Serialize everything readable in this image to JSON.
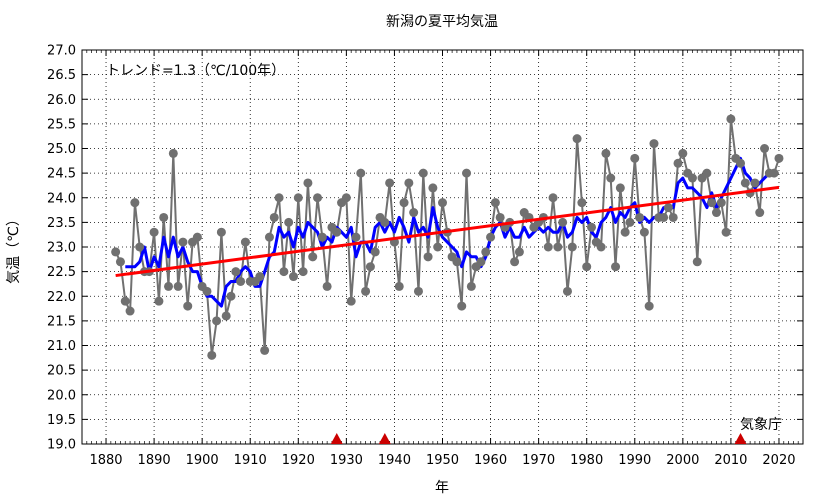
{
  "chart_data": {
    "type": "line",
    "title": "新潟の夏平均気温",
    "xlabel": "年",
    "ylabel": "気温（℃）",
    "annotation": "トレンド=1.3（℃/100年）",
    "source": "気象庁",
    "xlim": [
      1875,
      2025
    ],
    "ylim": [
      19.0,
      27.0
    ],
    "grid": true,
    "x_ticks": [
      1880,
      1890,
      1900,
      1910,
      1920,
      1930,
      1940,
      1950,
      1960,
      1970,
      1980,
      1990,
      2000,
      2010,
      2020
    ],
    "y_ticks": [
      19.0,
      19.5,
      20.0,
      20.5,
      21.0,
      21.5,
      22.0,
      22.5,
      23.0,
      23.5,
      24.0,
      24.5,
      25.0,
      25.5,
      26.0,
      26.5,
      27.0
    ],
    "marker_years": [
      1928,
      1938,
      2012
    ],
    "series": [
      {
        "role": "annual",
        "color": "#707070",
        "points": [
          [
            1882,
            22.9
          ],
          [
            1883,
            22.7
          ],
          [
            1884,
            21.9
          ],
          [
            1885,
            21.7
          ],
          [
            1886,
            23.9
          ],
          [
            1887,
            23.0
          ],
          [
            1888,
            22.5
          ],
          [
            1889,
            22.5
          ],
          [
            1890,
            23.3
          ],
          [
            1891,
            21.9
          ],
          [
            1892,
            23.6
          ],
          [
            1893,
            22.2
          ],
          [
            1894,
            24.9
          ],
          [
            1895,
            22.2
          ],
          [
            1896,
            23.1
          ],
          [
            1897,
            21.8
          ],
          [
            1898,
            23.1
          ],
          [
            1899,
            23.2
          ],
          [
            1900,
            22.2
          ],
          [
            1901,
            22.1
          ],
          [
            1902,
            20.8
          ],
          [
            1903,
            21.5
          ],
          [
            1904,
            23.3
          ],
          [
            1905,
            21.6
          ],
          [
            1906,
            22.0
          ],
          [
            1907,
            22.5
          ],
          [
            1908,
            22.3
          ],
          [
            1909,
            23.1
          ],
          [
            1910,
            22.3
          ],
          [
            1911,
            22.3
          ],
          [
            1912,
            22.4
          ],
          [
            1913,
            20.9
          ],
          [
            1914,
            23.2
          ],
          [
            1915,
            23.6
          ],
          [
            1916,
            24.0
          ],
          [
            1917,
            22.5
          ],
          [
            1918,
            23.5
          ],
          [
            1919,
            22.4
          ],
          [
            1920,
            24.0
          ],
          [
            1921,
            22.5
          ],
          [
            1922,
            24.3
          ],
          [
            1923,
            22.8
          ],
          [
            1924,
            24.0
          ],
          [
            1925,
            23.2
          ],
          [
            1926,
            22.2
          ],
          [
            1927,
            23.4
          ],
          [
            1928,
            23.3
          ],
          [
            1929,
            23.9
          ],
          [
            1930,
            24.0
          ],
          [
            1931,
            21.9
          ],
          [
            1932,
            23.2
          ],
          [
            1933,
            24.5
          ],
          [
            1934,
            22.1
          ],
          [
            1935,
            22.6
          ],
          [
            1936,
            22.9
          ],
          [
            1937,
            23.6
          ],
          [
            1938,
            23.5
          ],
          [
            1939,
            24.3
          ],
          [
            1940,
            23.1
          ],
          [
            1941,
            22.2
          ],
          [
            1942,
            23.9
          ],
          [
            1943,
            24.3
          ],
          [
            1944,
            23.7
          ],
          [
            1945,
            22.1
          ],
          [
            1946,
            24.5
          ],
          [
            1947,
            22.8
          ],
          [
            1948,
            24.2
          ],
          [
            1949,
            23.0
          ],
          [
            1950,
            23.9
          ],
          [
            1951,
            23.3
          ],
          [
            1952,
            22.8
          ],
          [
            1953,
            22.7
          ],
          [
            1954,
            21.8
          ],
          [
            1955,
            24.5
          ],
          [
            1956,
            22.2
          ],
          [
            1957,
            22.6
          ],
          [
            1958,
            22.7
          ],
          [
            1959,
            22.9
          ],
          [
            1960,
            23.2
          ],
          [
            1961,
            23.9
          ],
          [
            1962,
            23.6
          ],
          [
            1963,
            23.4
          ],
          [
            1964,
            23.5
          ],
          [
            1965,
            22.7
          ],
          [
            1966,
            22.9
          ],
          [
            1967,
            23.7
          ],
          [
            1968,
            23.6
          ],
          [
            1969,
            23.4
          ],
          [
            1970,
            23.5
          ],
          [
            1971,
            23.6
          ],
          [
            1972,
            23.0
          ],
          [
            1973,
            24.0
          ],
          [
            1974,
            23.0
          ],
          [
            1975,
            23.5
          ],
          [
            1976,
            22.1
          ],
          [
            1977,
            23.0
          ],
          [
            1978,
            25.2
          ],
          [
            1979,
            23.9
          ],
          [
            1980,
            22.6
          ],
          [
            1981,
            23.4
          ],
          [
            1982,
            23.1
          ],
          [
            1983,
            23.0
          ],
          [
            1984,
            24.9
          ],
          [
            1985,
            24.4
          ],
          [
            1986,
            22.6
          ],
          [
            1987,
            24.2
          ],
          [
            1988,
            23.3
          ],
          [
            1989,
            23.5
          ],
          [
            1990,
            24.8
          ],
          [
            1991,
            23.6
          ],
          [
            1992,
            23.3
          ],
          [
            1993,
            21.8
          ],
          [
            1994,
            25.1
          ],
          [
            1995,
            23.6
          ],
          [
            1996,
            23.6
          ],
          [
            1997,
            23.8
          ],
          [
            1998,
            23.6
          ],
          [
            1999,
            24.7
          ],
          [
            2000,
            24.9
          ],
          [
            2001,
            24.5
          ],
          [
            2002,
            24.4
          ],
          [
            2003,
            22.7
          ],
          [
            2004,
            24.4
          ],
          [
            2005,
            24.5
          ],
          [
            2006,
            23.9
          ],
          [
            2007,
            23.7
          ],
          [
            2008,
            23.9
          ],
          [
            2009,
            23.3
          ],
          [
            2010,
            25.6
          ],
          [
            2011,
            24.8
          ],
          [
            2012,
            24.7
          ],
          [
            2013,
            24.3
          ],
          [
            2014,
            24.1
          ],
          [
            2015,
            24.3
          ],
          [
            2016,
            23.7
          ],
          [
            2017,
            25.0
          ],
          [
            2018,
            24.5
          ],
          [
            2019,
            24.5
          ],
          [
            2020,
            24.8
          ]
        ]
      },
      {
        "role": "moving_average",
        "color": "#0000ff",
        "points": [
          [
            1884,
            22.6
          ],
          [
            1885,
            22.6
          ],
          [
            1886,
            22.6
          ],
          [
            1887,
            22.7
          ],
          [
            1888,
            23.0
          ],
          [
            1889,
            22.5
          ],
          [
            1890,
            22.8
          ],
          [
            1891,
            22.6
          ],
          [
            1892,
            23.2
          ],
          [
            1893,
            22.8
          ],
          [
            1894,
            23.2
          ],
          [
            1895,
            22.8
          ],
          [
            1896,
            23.0
          ],
          [
            1897,
            22.7
          ],
          [
            1898,
            22.5
          ],
          [
            1899,
            22.5
          ],
          [
            1900,
            22.2
          ],
          [
            1901,
            22.0
          ],
          [
            1902,
            22.0
          ],
          [
            1903,
            21.9
          ],
          [
            1904,
            21.8
          ],
          [
            1905,
            22.2
          ],
          [
            1906,
            22.3
          ],
          [
            1907,
            22.3
          ],
          [
            1908,
            22.5
          ],
          [
            1909,
            22.6
          ],
          [
            1910,
            22.5
          ],
          [
            1911,
            22.2
          ],
          [
            1912,
            22.2
          ],
          [
            1913,
            22.5
          ],
          [
            1914,
            22.8
          ],
          [
            1915,
            22.9
          ],
          [
            1916,
            23.4
          ],
          [
            1917,
            23.2
          ],
          [
            1918,
            23.3
          ],
          [
            1919,
            23.0
          ],
          [
            1920,
            23.4
          ],
          [
            1921,
            23.2
          ],
          [
            1922,
            23.5
          ],
          [
            1923,
            23.4
          ],
          [
            1924,
            23.3
          ],
          [
            1925,
            23.0
          ],
          [
            1926,
            23.2
          ],
          [
            1927,
            23.1
          ],
          [
            1928,
            23.4
          ],
          [
            1929,
            23.3
          ],
          [
            1930,
            23.2
          ],
          [
            1931,
            23.4
          ],
          [
            1932,
            22.8
          ],
          [
            1933,
            23.1
          ],
          [
            1934,
            23.1
          ],
          [
            1935,
            22.9
          ],
          [
            1936,
            23.4
          ],
          [
            1937,
            23.5
          ],
          [
            1938,
            23.3
          ],
          [
            1939,
            23.5
          ],
          [
            1940,
            23.3
          ],
          [
            1941,
            23.6
          ],
          [
            1942,
            23.4
          ],
          [
            1943,
            23.1
          ],
          [
            1944,
            23.6
          ],
          [
            1945,
            23.3
          ],
          [
            1946,
            23.4
          ],
          [
            1947,
            23.2
          ],
          [
            1948,
            23.8
          ],
          [
            1949,
            23.4
          ],
          [
            1950,
            23.2
          ],
          [
            1951,
            23.1
          ],
          [
            1952,
            23.0
          ],
          [
            1953,
            22.9
          ],
          [
            1954,
            22.6
          ],
          [
            1955,
            22.9
          ],
          [
            1956,
            22.8
          ],
          [
            1957,
            22.8
          ],
          [
            1958,
            22.6
          ],
          [
            1959,
            22.8
          ],
          [
            1960,
            23.2
          ],
          [
            1961,
            23.4
          ],
          [
            1962,
            23.5
          ],
          [
            1963,
            23.2
          ],
          [
            1964,
            23.4
          ],
          [
            1965,
            23.2
          ],
          [
            1966,
            23.2
          ],
          [
            1967,
            23.4
          ],
          [
            1968,
            23.2
          ],
          [
            1969,
            23.3
          ],
          [
            1970,
            23.4
          ],
          [
            1971,
            23.3
          ],
          [
            1972,
            23.4
          ],
          [
            1973,
            23.3
          ],
          [
            1974,
            23.3
          ],
          [
            1975,
            23.5
          ],
          [
            1976,
            23.2
          ],
          [
            1977,
            23.3
          ],
          [
            1978,
            23.6
          ],
          [
            1979,
            23.5
          ],
          [
            1980,
            23.6
          ],
          [
            1981,
            23.3
          ],
          [
            1982,
            23.2
          ],
          [
            1983,
            23.5
          ],
          [
            1984,
            23.6
          ],
          [
            1985,
            23.8
          ],
          [
            1986,
            23.5
          ],
          [
            1987,
            23.7
          ],
          [
            1988,
            23.6
          ],
          [
            1989,
            23.8
          ],
          [
            1990,
            23.9
          ],
          [
            1991,
            23.5
          ],
          [
            1992,
            23.6
          ],
          [
            1993,
            23.5
          ],
          [
            1994,
            23.6
          ],
          [
            1995,
            23.6
          ],
          [
            1996,
            23.8
          ],
          [
            1997,
            23.8
          ],
          [
            1998,
            23.8
          ],
          [
            1999,
            24.3
          ],
          [
            2000,
            24.4
          ],
          [
            2001,
            24.2
          ],
          [
            2002,
            24.2
          ],
          [
            2003,
            24.1
          ],
          [
            2004,
            24.0
          ],
          [
            2005,
            23.8
          ],
          [
            2006,
            24.1
          ],
          [
            2007,
            23.8
          ],
          [
            2008,
            24.0
          ],
          [
            2009,
            24.2
          ],
          [
            2010,
            24.4
          ],
          [
            2011,
            24.6
          ],
          [
            2012,
            24.8
          ],
          [
            2013,
            24.5
          ],
          [
            2014,
            24.4
          ],
          [
            2015,
            24.2
          ],
          [
            2016,
            24.3
          ],
          [
            2017,
            24.4
          ],
          [
            2018,
            24.5
          ]
        ]
      },
      {
        "role": "trend",
        "color": "#ff0000",
        "points": [
          [
            1882,
            22.42
          ],
          [
            2020,
            24.21
          ]
        ]
      }
    ]
  }
}
